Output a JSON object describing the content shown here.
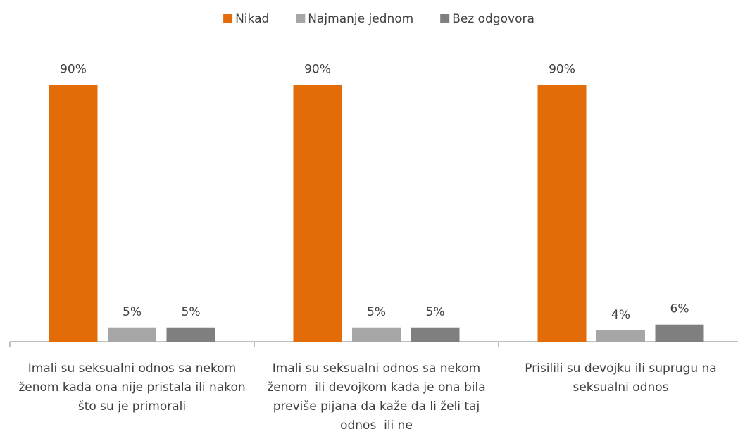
{
  "chart_data": {
    "type": "bar",
    "categories": [
      "Imali su seksualni odnos sa nekom ženom kada ona nije pristala ili nakon što su je primorali",
      "Imali su seksualni odnos sa nekom ženom  ili devojkom kada je ona bila previše pijana da kaže da li želi taj odnos  ili ne",
      "Prisilili su devojku ili suprugu na seksualni odnos"
    ],
    "series": [
      {
        "name": "Nikad",
        "color": "#e36c09",
        "values": [
          90,
          90,
          90
        ],
        "value_labels": [
          "90%",
          "90%",
          "90%"
        ]
      },
      {
        "name": "Najmanje jednom",
        "color": "#a6a6a6",
        "values": [
          5,
          5,
          4
        ],
        "value_labels": [
          "5%",
          "5%",
          "4%"
        ]
      },
      {
        "name": "Bez odgovora",
        "color": "#7f7f7f",
        "values": [
          5,
          5,
          6
        ],
        "value_labels": [
          "5%",
          "5%",
          "6%"
        ]
      }
    ],
    "legend": "top"
  }
}
